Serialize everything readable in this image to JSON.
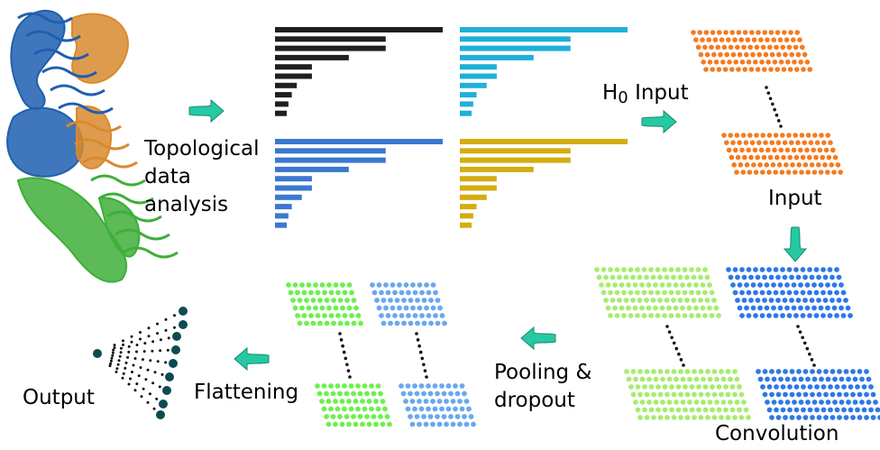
{
  "labels": {
    "tda_line1": "Topological",
    "tda_line2": "data",
    "tda_line3": "analysis",
    "h0": "H",
    "h0_sub": "0",
    "h0_input": "Input",
    "input": "Input",
    "convolution": "Convolution",
    "pooling_line1": "Pooling &",
    "pooling_line2": "dropout",
    "flattening": "Flattening",
    "output": "Output"
  },
  "colors": {
    "barcode_black": "#1f1f1f",
    "barcode_cyan": "#1fb0d8",
    "barcode_blue": "#3a78d0",
    "barcode_gold": "#d4ad12",
    "input_dots": "#f47b20",
    "conv_light_green": "#a8ec70",
    "conv_blue": "#2f78e6",
    "pool_green": "#6df04c",
    "pool_blue": "#6aa8ee",
    "output_nodes": "#0f4a52",
    "arrow": "#25c9a3",
    "protein_blue": "#1f5fb0",
    "protein_orange": "#d98a2e",
    "protein_green": "#3fae3a"
  },
  "barcodes": [
    {
      "name": "barcode-panel-black",
      "color_key": "barcode_black",
      "bars": [
        1.0,
        0.66,
        0.66,
        0.44,
        0.22,
        0.22,
        0.13,
        0.1,
        0.08,
        0.07
      ]
    },
    {
      "name": "barcode-panel-cyan",
      "color_key": "barcode_cyan",
      "bars": [
        1.0,
        0.66,
        0.66,
        0.44,
        0.22,
        0.22,
        0.16,
        0.1,
        0.08,
        0.07
      ]
    },
    {
      "name": "barcode-panel-blue",
      "color_key": "barcode_blue",
      "bars": [
        1.0,
        0.66,
        0.66,
        0.44,
        0.22,
        0.22,
        0.16,
        0.1,
        0.08,
        0.07
      ]
    },
    {
      "name": "barcode-panel-gold",
      "color_key": "barcode_gold",
      "bars": [
        1.0,
        0.66,
        0.66,
        0.44,
        0.22,
        0.22,
        0.16,
        0.1,
        0.08,
        0.07
      ]
    }
  ],
  "icons": {
    "protein": "protein-structure-icon",
    "arrow": "flow-arrow-icon",
    "continuation": "vertical-ellipsis-dots"
  }
}
